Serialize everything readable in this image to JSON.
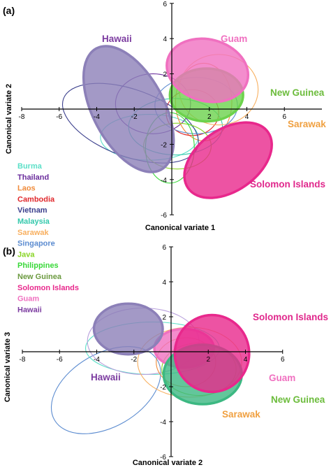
{
  "chart_data": [
    {
      "type": "scatter",
      "panel_label": "(a)",
      "xlabel": "Canonical variate 1",
      "ylabel": "Canonical variate 2",
      "xlim": [
        -8,
        8
      ],
      "ylim": [
        -6,
        6
      ],
      "x_ticks": [
        -8,
        -6,
        -4,
        -2,
        2,
        4,
        6
      ],
      "y_ticks": [
        -6,
        -4,
        -2,
        2,
        4,
        6
      ],
      "legend": {
        "placement": "left",
        "entries": [
          {
            "name": "Burma",
            "color": "#5ce0c8"
          },
          {
            "name": "Thailand",
            "color": "#6a2c9c"
          },
          {
            "name": "Laos",
            "color": "#f08c3c"
          },
          {
            "name": "Cambodia",
            "color": "#e0282c"
          },
          {
            "name": "Vietnam",
            "color": "#3a3e8c"
          },
          {
            "name": "Malaysia",
            "color": "#34c8ac"
          },
          {
            "name": "Sarawak",
            "color": "#f8b060"
          },
          {
            "name": "Singapore",
            "color": "#5c8cd0"
          },
          {
            "name": "Java",
            "color": "#88d424"
          },
          {
            "name": "Philippines",
            "color": "#38d838"
          },
          {
            "name": "New Guinea",
            "color": "#6c9a40"
          },
          {
            "name": "Solomon Islands",
            "color": "#e8288c"
          },
          {
            "name": "Guam",
            "color": "#f070c0"
          },
          {
            "name": "Hawaii",
            "color": "#7c3ca0"
          }
        ]
      },
      "series": [
        {
          "name": "Burma",
          "cx": -1.2,
          "cy": -1.6,
          "rx": 2.6,
          "ry": 1.3,
          "angle": 0,
          "filled": false,
          "color": "#5ce0c8"
        },
        {
          "name": "Thailand",
          "cx": -1.0,
          "cy": 0.3,
          "rx": 2.0,
          "ry": 1.7,
          "angle": 0,
          "filled": false,
          "color": "#6a2c9c"
        },
        {
          "name": "Laos",
          "cx": 1.7,
          "cy": 0.4,
          "rx": 1.5,
          "ry": 2.2,
          "angle": 0,
          "filled": false,
          "color": "#f08c3c"
        },
        {
          "name": "Cambodia",
          "cx": 1.1,
          "cy": -0.2,
          "rx": 1.4,
          "ry": 1.3,
          "angle": 0,
          "filled": false,
          "color": "#e0282c"
        },
        {
          "name": "Vietnam",
          "cx": -2.2,
          "cy": -0.8,
          "rx": 3.8,
          "ry": 1.9,
          "angle": 20,
          "filled": false,
          "color": "#3a3e8c"
        },
        {
          "name": "Malaysia",
          "cx": 0.2,
          "cy": -1.0,
          "rx": 2.5,
          "ry": 1.6,
          "angle": 0,
          "filled": false,
          "color": "#34c8ac"
        },
        {
          "name": "Sarawak",
          "cx": 2.5,
          "cy": 1.1,
          "rx": 2.1,
          "ry": 2.0,
          "angle": 0,
          "filled": false,
          "color": "#f8b060"
        },
        {
          "name": "Singapore",
          "cx": 1.3,
          "cy": 0.2,
          "rx": 2.2,
          "ry": 1.6,
          "angle": 0,
          "filled": false,
          "color": "#5c8cd0"
        },
        {
          "name": "Java",
          "cx": 0.3,
          "cy": -2.1,
          "rx": 1.8,
          "ry": 1.3,
          "angle": 0,
          "filled": false,
          "color": "#88d424"
        },
        {
          "name": "Philippines",
          "cx": -0.1,
          "cy": -2.2,
          "rx": 1.3,
          "ry": 2.0,
          "angle": 0,
          "filled": false,
          "color": "#38d838"
        },
        {
          "name": "New Guinea",
          "cx": 1.85,
          "cy": 0.8,
          "rx": 1.95,
          "ry": 1.5,
          "angle": 0,
          "filled": true,
          "color": "#6cd24c"
        },
        {
          "name": "Solomon Islands",
          "cx": 3.0,
          "cy": -2.9,
          "rx": 2.6,
          "ry": 1.75,
          "angle": -35,
          "filled": true,
          "color": "#e8288c"
        },
        {
          "name": "Guam",
          "cx": 1.9,
          "cy": 2.2,
          "rx": 2.2,
          "ry": 1.75,
          "angle": 15,
          "filled": true,
          "color": "#f070c0"
        },
        {
          "name": "Hawaii",
          "cx": -2.3,
          "cy": 0.0,
          "rx": 1.9,
          "ry": 3.9,
          "angle": -28,
          "filled": true,
          "color": "#8c80b8"
        }
      ],
      "region_labels": [
        {
          "text": "Hawaii",
          "color": "#7c3ca0"
        },
        {
          "text": "Guam",
          "color": "#f070c0"
        },
        {
          "text": "New Guinea",
          "color": "#6cbc3c"
        },
        {
          "text": "Sarawak",
          "color": "#f0a040"
        },
        {
          "text": "Solomon Islands",
          "color": "#e0288c"
        }
      ]
    },
    {
      "type": "scatter",
      "panel_label": "(b)",
      "xlabel": "Canonical variate 2",
      "ylabel": "Canonical variate 3",
      "xlim": [
        -8,
        6
      ],
      "ylim": [
        -6,
        6
      ],
      "x_ticks": [
        -8,
        -6,
        -4,
        -2,
        2,
        4,
        6
      ],
      "y_ticks": [
        -6,
        -4,
        -2,
        2,
        4,
        6
      ],
      "series": [
        {
          "name": "Vietnam",
          "cx": -3.5,
          "cy": -2.2,
          "rx": 3.2,
          "ry": 2.1,
          "angle": -30,
          "filled": false,
          "color": "#5c8cd0"
        },
        {
          "name": "Malaysia",
          "cx": -1.0,
          "cy": 0.2,
          "rx": 3.6,
          "ry": 1.5,
          "angle": 0,
          "filled": false,
          "color": "#5ce0c8"
        },
        {
          "name": "Thailand",
          "cx": -1.5,
          "cy": 0.6,
          "rx": 3.0,
          "ry": 1.9,
          "angle": 0,
          "filled": false,
          "color": "#b8a0dc"
        },
        {
          "name": "Sarawak",
          "cx": 1.0,
          "cy": -0.6,
          "rx": 2.8,
          "ry": 2.0,
          "angle": 0,
          "filled": false,
          "color": "#f8b060"
        },
        {
          "name": "Laos",
          "cx": 0.8,
          "cy": -0.6,
          "rx": 1.6,
          "ry": 1.4,
          "angle": 0,
          "filled": false,
          "color": "#f08c3c"
        },
        {
          "name": "Java",
          "cx": 1.5,
          "cy": -1.0,
          "rx": 2.0,
          "ry": 1.5,
          "angle": 0,
          "filled": false,
          "color": "#88d424"
        },
        {
          "name": "Guam",
          "cx": 0.7,
          "cy": 0.2,
          "rx": 1.6,
          "ry": 1.1,
          "angle": 0,
          "filled": true,
          "color": "#f070c0"
        },
        {
          "name": "New Guinea",
          "cx": 1.7,
          "cy": -1.3,
          "rx": 2.1,
          "ry": 1.7,
          "angle": 0,
          "filled": true,
          "color": "#3cb882"
        },
        {
          "name": "Solomon Islands",
          "cx": 2.2,
          "cy": -0.1,
          "rx": 2.0,
          "ry": 2.2,
          "angle": 0,
          "filled": true,
          "color": "#e8288c"
        },
        {
          "name": "Hawaii",
          "cx": -2.3,
          "cy": 1.3,
          "rx": 1.85,
          "ry": 1.45,
          "angle": 0,
          "filled": true,
          "color": "#8c80b8"
        }
      ],
      "region_labels": [
        {
          "text": "Solomon Islands",
          "color": "#e0288c"
        },
        {
          "text": "Hawaii",
          "color": "#7c3ca0"
        },
        {
          "text": "Guam",
          "color": "#f070c0"
        },
        {
          "text": "New Guinea",
          "color": "#6cbc3c"
        },
        {
          "text": "Sarawak",
          "color": "#f0a040"
        }
      ]
    }
  ]
}
